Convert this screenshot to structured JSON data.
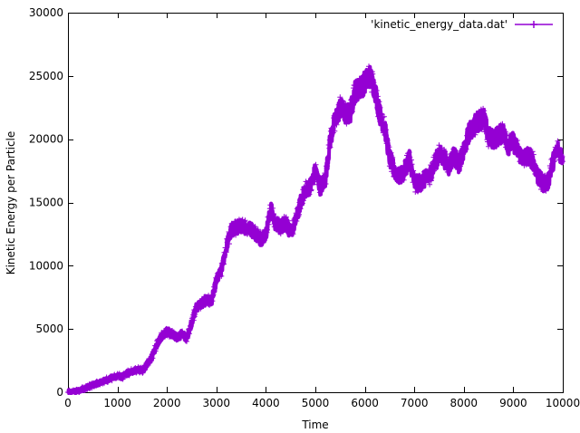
{
  "chart_data": {
    "type": "line",
    "title": "",
    "xlabel": "Time",
    "ylabel": "Kinetic Energy per Particle",
    "xlim": [
      0,
      10000
    ],
    "ylim": [
      0,
      30000
    ],
    "x_ticks": [
      0,
      1000,
      2000,
      3000,
      4000,
      5000,
      6000,
      7000,
      8000,
      9000,
      10000
    ],
    "y_ticks": [
      0,
      5000,
      10000,
      15000,
      20000,
      25000,
      30000
    ],
    "x_tick_labels": [
      "0",
      "1000",
      "2000",
      "3000",
      "4000",
      "5000",
      "6000",
      "7000",
      "8000",
      "9000",
      "10000"
    ],
    "y_tick_labels": [
      "0",
      "5000",
      "10000",
      "15000",
      "20000",
      "25000",
      "30000"
    ],
    "grid": false,
    "legend_position": "top-right",
    "series": [
      {
        "name": "'kinetic_energy_data.dat'",
        "color": "#9400d3",
        "marker": "plus",
        "x": [
          0,
          200,
          400,
          600,
          800,
          1000,
          1100,
          1200,
          1400,
          1500,
          1600,
          1700,
          1800,
          1900,
          2000,
          2100,
          2200,
          2300,
          2400,
          2500,
          2600,
          2700,
          2800,
          2900,
          3000,
          3100,
          3200,
          3300,
          3400,
          3500,
          3600,
          3700,
          3800,
          3900,
          4000,
          4100,
          4200,
          4300,
          4400,
          4500,
          4600,
          4700,
          4800,
          4900,
          5000,
          5100,
          5200,
          5300,
          5400,
          5500,
          5600,
          5700,
          5800,
          5900,
          6000,
          6100,
          6200,
          6300,
          6400,
          6500,
          6600,
          6700,
          6800,
          6900,
          7000,
          7100,
          7200,
          7300,
          7400,
          7500,
          7600,
          7700,
          7800,
          7900,
          8000,
          8100,
          8200,
          8300,
          8400,
          8500,
          8600,
          8700,
          8800,
          8900,
          9000,
          9100,
          9200,
          9300,
          9400,
          9500,
          9600,
          9700,
          9800,
          9900,
          10000
        ],
        "y": [
          0,
          100,
          400,
          700,
          1000,
          1300,
          1200,
          1500,
          1800,
          1700,
          2200,
          2800,
          3800,
          4500,
          4800,
          4600,
          4300,
          4600,
          4300,
          5500,
          6800,
          7000,
          7300,
          7200,
          8800,
          9600,
          11500,
          12800,
          13000,
          13200,
          13000,
          12900,
          12500,
          12100,
          12500,
          14500,
          13200,
          13100,
          13400,
          12600,
          13500,
          15000,
          16000,
          16300,
          17500,
          16200,
          16800,
          20000,
          21500,
          22500,
          22000,
          22000,
          23800,
          24000,
          24500,
          25000,
          24000,
          22000,
          21000,
          18500,
          17500,
          17000,
          17500,
          18600,
          16500,
          16500,
          16800,
          17000,
          18000,
          18800,
          18500,
          17800,
          18800,
          18000,
          19000,
          20500,
          21000,
          21500,
          21700,
          20200,
          20000,
          20300,
          20500,
          19500,
          19800,
          19000,
          18500,
          18700,
          18300,
          17000,
          16500,
          16600,
          18200,
          19200,
          18600
        ]
      }
    ]
  }
}
